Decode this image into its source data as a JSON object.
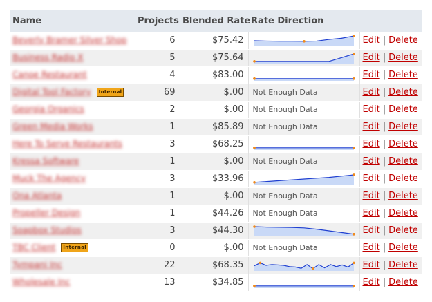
{
  "columns": {
    "name": "Name",
    "projects": "Projects",
    "rate": "Blended Rate",
    "direction": "Rate Direction"
  },
  "actions": {
    "edit": "Edit",
    "delete": "Delete",
    "separator": "|"
  },
  "not_enough_data": "Not Enough Data",
  "rows": [
    {
      "client": "Beverly Bramer Silver Shop",
      "badge": "",
      "projects": "6",
      "rate": "$75.42",
      "trend": [
        0.42,
        0.38,
        0.36,
        0.36,
        0.35,
        0.38,
        0.58,
        0.72,
        1.0
      ]
    },
    {
      "client": "Business Radio X",
      "badge": "",
      "projects": "5",
      "rate": "$75.64",
      "trend": [
        0.1,
        0.1,
        0.1,
        0.1,
        0.1,
        0.1,
        0.1,
        0.55,
        1.0
      ]
    },
    {
      "client": "Canoe Restaurant",
      "badge": "",
      "projects": "4",
      "rate": "$83.00",
      "trend": [
        0.1,
        0.1,
        0.1,
        0.1,
        0.1,
        0.1,
        0.1,
        0.1,
        0.1
      ]
    },
    {
      "client": "Digital Tool Factory",
      "badge": "Internal",
      "projects": "69",
      "rate": "$.00",
      "trend": null
    },
    {
      "client": "Georgia Organics",
      "badge": "",
      "projects": "2",
      "rate": "$.00",
      "trend": null
    },
    {
      "client": "Green Media Works",
      "badge": "",
      "projects": "1",
      "rate": "$85.89",
      "trend": null
    },
    {
      "client": "Here To Serve Restaurants",
      "badge": "",
      "projects": "3",
      "rate": "$68.25",
      "trend": [
        0.1,
        0.1,
        0.1,
        0.1,
        0.1,
        0.1,
        0.1,
        0.1,
        0.1
      ]
    },
    {
      "client": "Kressa Software",
      "badge": "",
      "projects": "1",
      "rate": "$.00",
      "trend": null
    },
    {
      "client": "Muck The Agency",
      "badge": "",
      "projects": "3",
      "rate": "$33.96",
      "trend": [
        0.1,
        0.2,
        0.3,
        0.4,
        0.5,
        0.6,
        0.7,
        0.85,
        1.0
      ]
    },
    {
      "client": "Ona Atlanta",
      "badge": "",
      "projects": "1",
      "rate": "$.00",
      "trend": null
    },
    {
      "client": "Propeller Design",
      "badge": "",
      "projects": "1",
      "rate": "$44.26",
      "trend": null
    },
    {
      "client": "Soapbox Studios",
      "badge": "",
      "projects": "3",
      "rate": "$44.30",
      "trend": [
        1.0,
        0.95,
        0.92,
        0.9,
        0.85,
        0.7,
        0.5,
        0.3,
        0.1
      ]
    },
    {
      "client": "TBC Client",
      "badge": "Internal",
      "projects": "0",
      "rate": "$.00",
      "trend": null
    },
    {
      "client": "Tympani Inc",
      "badge": "",
      "projects": "22",
      "rate": "$68.35",
      "trend": [
        0.45,
        0.8,
        0.5,
        0.6,
        0.55,
        0.5,
        0.35,
        0.3,
        0.15,
        0.6,
        0.1,
        0.6,
        0.2,
        0.6,
        0.35,
        0.55,
        0.3,
        0.8
      ]
    },
    {
      "client": "Wholesale Inc",
      "badge": "",
      "projects": "13",
      "rate": "$34.85",
      "trend": [
        0.1,
        0.1,
        0.1,
        0.1,
        0.1,
        0.1,
        0.1,
        0.1,
        0.1
      ]
    }
  ]
}
